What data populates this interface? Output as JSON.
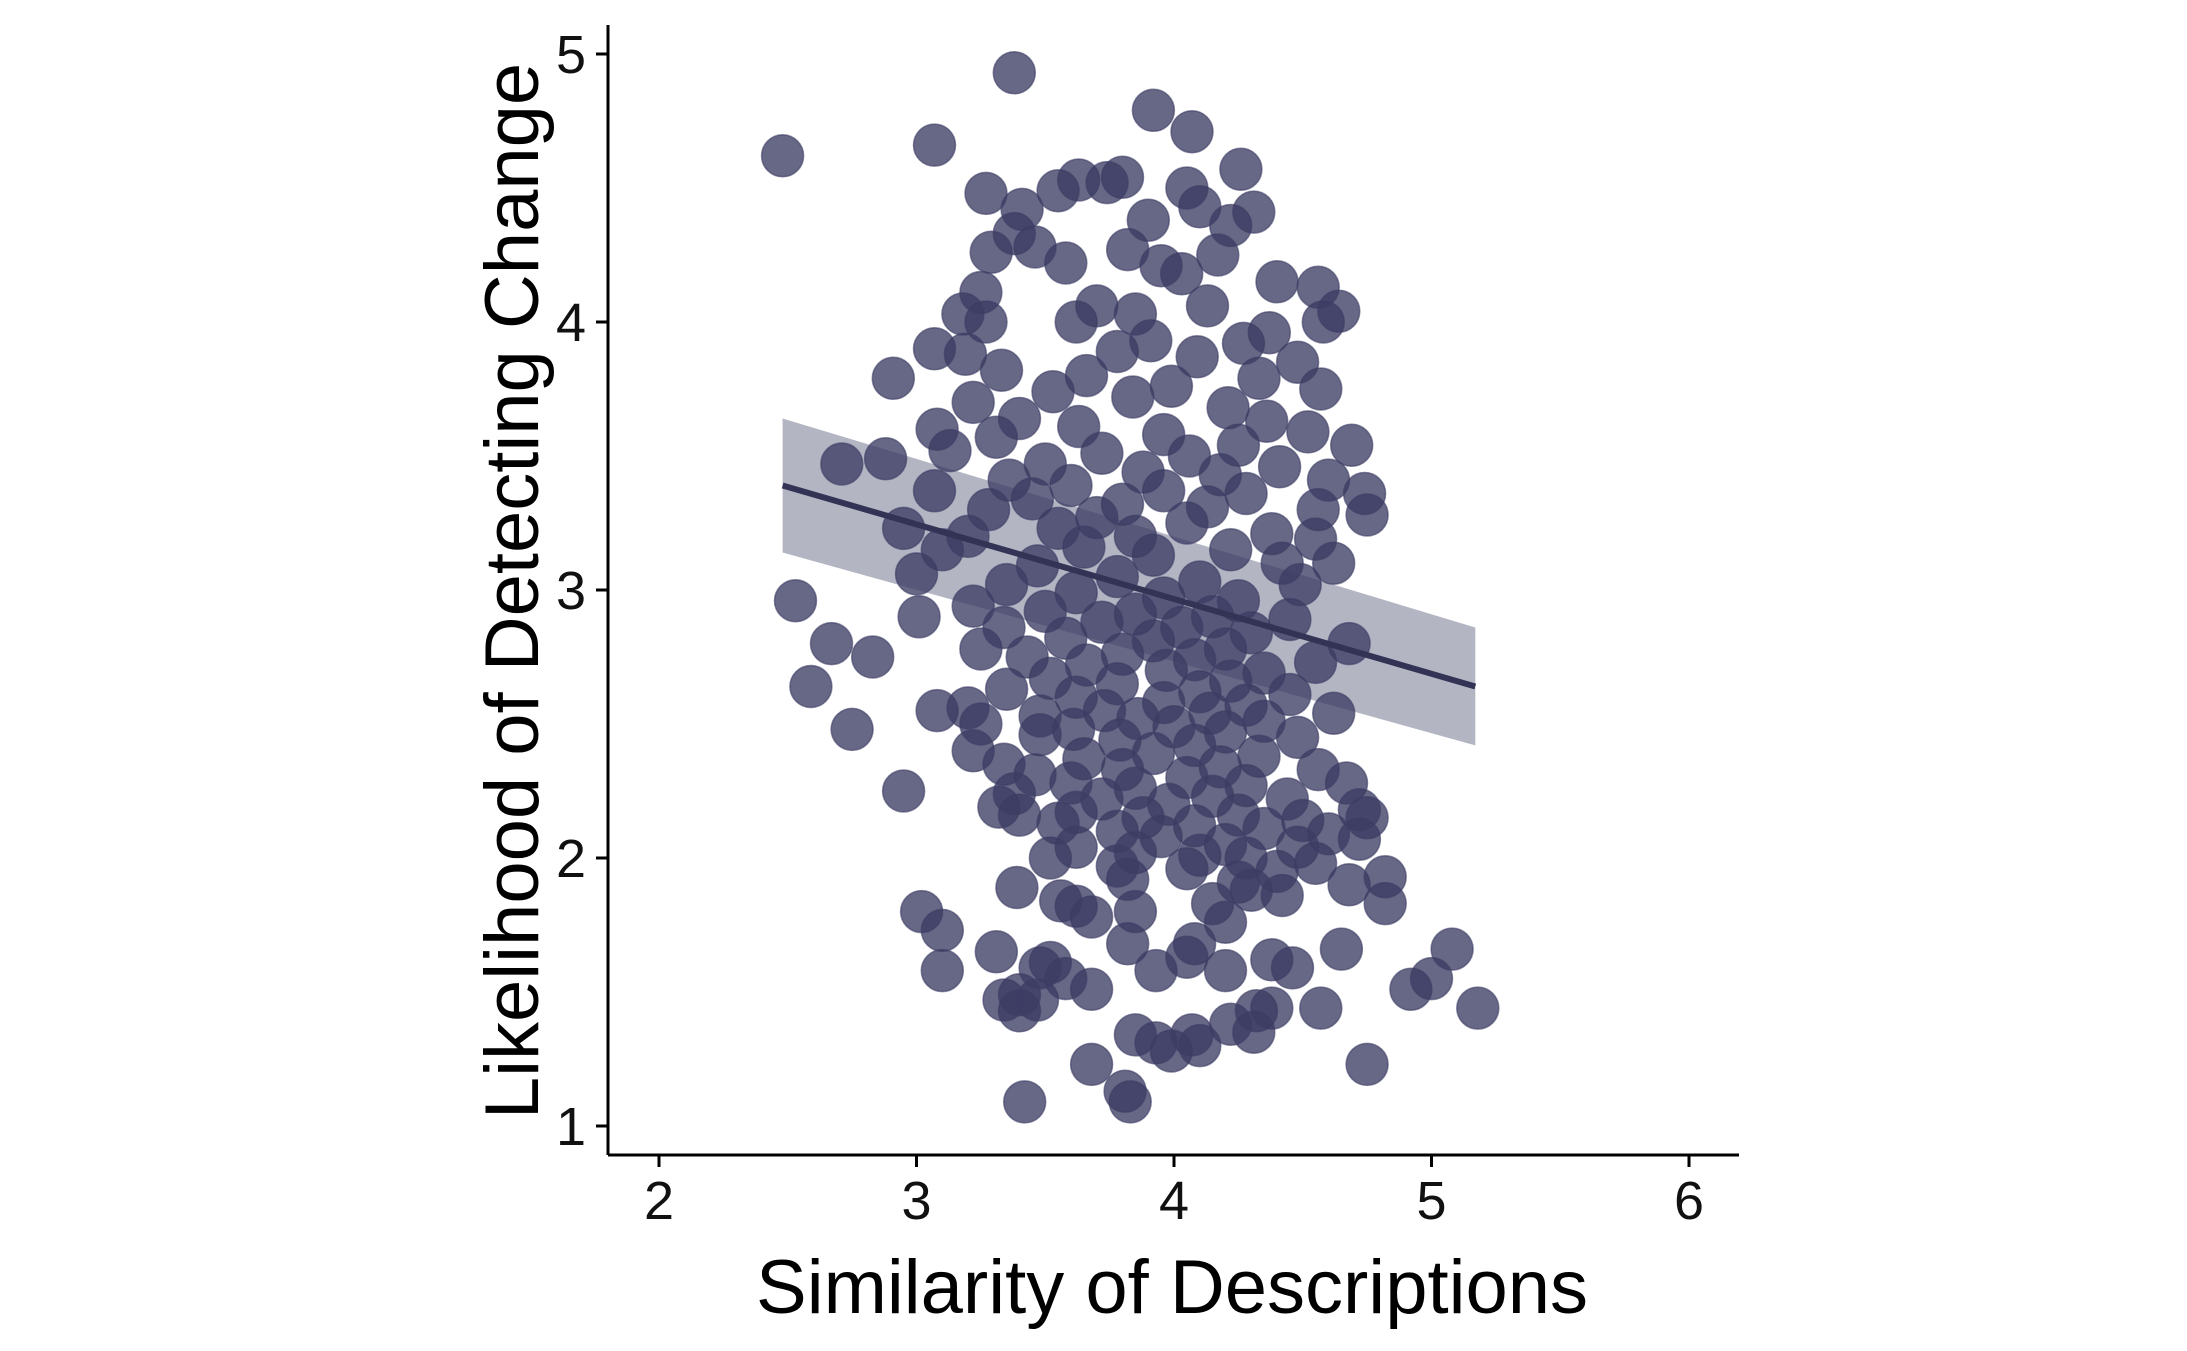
{
  "chart_data": {
    "type": "scatter",
    "title": "",
    "xlabel": "Similarity of Descriptions",
    "ylabel": "Likelihood of Detecting Change",
    "xlim": [
      1.8,
      6.2
    ],
    "ylim": [
      0.9,
      5.12
    ],
    "xticks": [
      2,
      3,
      4,
      5,
      6
    ],
    "yticks": [
      1,
      2,
      3,
      4,
      5
    ],
    "grid": false,
    "colors": {
      "points": "#3c3c64",
      "fit_line": "#333355",
      "ci_band": "#a6a8b8",
      "axis": "#000000"
    },
    "points": [
      [
        2.48,
        4.62
      ],
      [
        3.07,
        4.66
      ],
      [
        3.38,
        4.93
      ],
      [
        3.92,
        4.79
      ],
      [
        4.07,
        4.71
      ],
      [
        4.26,
        4.57
      ],
      [
        3.27,
        4.48
      ],
      [
        3.74,
        4.52
      ],
      [
        3.63,
        4.53
      ],
      [
        3.8,
        4.54
      ],
      [
        3.55,
        4.49
      ],
      [
        4.05,
        4.5
      ],
      [
        4.31,
        4.41
      ],
      [
        3.41,
        4.42
      ],
      [
        4.1,
        4.43
      ],
      [
        3.9,
        4.38
      ],
      [
        3.38,
        4.33
      ],
      [
        4.22,
        4.36
      ],
      [
        3.46,
        4.28
      ],
      [
        3.58,
        4.22
      ],
      [
        3.29,
        4.26
      ],
      [
        3.82,
        4.27
      ],
      [
        3.95,
        4.21
      ],
      [
        4.17,
        4.25
      ],
      [
        4.4,
        4.15
      ],
      [
        4.03,
        4.18
      ],
      [
        3.25,
        4.11
      ],
      [
        4.56,
        4.13
      ],
      [
        4.64,
        4.04
      ],
      [
        3.18,
        4.03
      ],
      [
        3.7,
        4.06
      ],
      [
        3.85,
        4.03
      ],
      [
        4.13,
        4.06
      ],
      [
        3.62,
        4.0
      ],
      [
        4.58,
        4.0
      ],
      [
        3.27,
        4.0
      ],
      [
        4.37,
        3.96
      ],
      [
        3.91,
        3.93
      ],
      [
        4.27,
        3.92
      ],
      [
        3.07,
        3.9
      ],
      [
        3.19,
        3.88
      ],
      [
        3.78,
        3.89
      ],
      [
        4.09,
        3.87
      ],
      [
        4.48,
        3.85
      ],
      [
        3.33,
        3.82
      ],
      [
        3.66,
        3.8
      ],
      [
        4.33,
        3.79
      ],
      [
        2.91,
        3.79
      ],
      [
        3.99,
        3.76
      ],
      [
        4.57,
        3.75
      ],
      [
        3.53,
        3.74
      ],
      [
        3.22,
        3.7
      ],
      [
        3.84,
        3.72
      ],
      [
        4.21,
        3.68
      ],
      [
        3.4,
        3.64
      ],
      [
        4.36,
        3.63
      ],
      [
        3.08,
        3.6
      ],
      [
        3.63,
        3.61
      ],
      [
        4.52,
        3.59
      ],
      [
        3.96,
        3.58
      ],
      [
        3.31,
        3.57
      ],
      [
        4.25,
        3.54
      ],
      [
        4.69,
        3.54
      ],
      [
        3.13,
        3.52
      ],
      [
        3.72,
        3.51
      ],
      [
        4.06,
        3.5
      ],
      [
        2.88,
        3.49
      ],
      [
        3.5,
        3.47
      ],
      [
        2.71,
        3.47
      ],
      [
        4.41,
        3.46
      ],
      [
        3.88,
        3.44
      ],
      [
        4.18,
        3.43
      ],
      [
        3.36,
        3.41
      ],
      [
        4.6,
        3.41
      ],
      [
        3.6,
        3.39
      ],
      [
        3.96,
        3.37
      ],
      [
        3.07,
        3.37
      ],
      [
        4.28,
        3.36
      ],
      [
        4.74,
        3.36
      ],
      [
        3.45,
        3.34
      ],
      [
        3.8,
        3.32
      ],
      [
        4.13,
        3.31
      ],
      [
        4.56,
        3.3
      ],
      [
        3.28,
        3.3
      ],
      [
        4.75,
        3.28
      ],
      [
        3.7,
        3.27
      ],
      [
        4.05,
        3.25
      ],
      [
        2.95,
        3.23
      ],
      [
        3.55,
        3.23
      ],
      [
        4.38,
        3.21
      ],
      [
        3.85,
        3.2
      ],
      [
        3.2,
        3.2
      ],
      [
        4.55,
        3.19
      ],
      [
        3.65,
        3.16
      ],
      [
        3.1,
        3.15
      ],
      [
        4.22,
        3.15
      ],
      [
        3.92,
        3.13
      ],
      [
        4.62,
        3.1
      ],
      [
        3.47,
        3.09
      ],
      [
        4.42,
        3.1
      ],
      [
        3.0,
        3.06
      ],
      [
        3.78,
        3.05
      ],
      [
        4.1,
        3.03
      ],
      [
        3.35,
        3.02
      ],
      [
        4.49,
        3.02
      ],
      [
        3.62,
        2.99
      ],
      [
        3.96,
        2.97
      ],
      [
        4.25,
        2.96
      ],
      [
        2.53,
        2.96
      ],
      [
        3.22,
        2.94
      ],
      [
        3.5,
        2.92
      ],
      [
        3.85,
        2.91
      ],
      [
        4.15,
        2.9
      ],
      [
        3.01,
        2.9
      ],
      [
        4.45,
        2.89
      ],
      [
        3.72,
        2.88
      ],
      [
        4.03,
        2.86
      ],
      [
        3.34,
        2.86
      ],
      [
        4.3,
        2.84
      ],
      [
        3.58,
        2.82
      ],
      [
        3.92,
        2.81
      ],
      [
        2.67,
        2.8
      ],
      [
        4.68,
        2.8
      ],
      [
        3.25,
        2.78
      ],
      [
        4.2,
        2.78
      ],
      [
        3.8,
        2.76
      ],
      [
        2.83,
        2.75
      ],
      [
        3.43,
        2.75
      ],
      [
        4.08,
        2.74
      ],
      [
        4.55,
        2.73
      ],
      [
        3.66,
        2.72
      ],
      [
        3.97,
        2.7
      ],
      [
        4.35,
        2.69
      ],
      [
        3.52,
        2.67
      ],
      [
        4.22,
        2.66
      ],
      [
        3.78,
        2.65
      ],
      [
        2.59,
        2.64
      ],
      [
        3.35,
        2.63
      ],
      [
        4.1,
        2.62
      ],
      [
        4.45,
        2.61
      ],
      [
        3.62,
        2.6
      ],
      [
        3.96,
        2.58
      ],
      [
        4.28,
        2.57
      ],
      [
        3.2,
        2.56
      ],
      [
        3.08,
        2.55
      ],
      [
        3.73,
        2.55
      ],
      [
        4.14,
        2.54
      ],
      [
        4.62,
        2.54
      ],
      [
        3.48,
        2.53
      ],
      [
        3.86,
        2.52
      ],
      [
        4.35,
        2.51
      ],
      [
        3.25,
        2.5
      ],
      [
        4.0,
        2.49
      ],
      [
        2.75,
        2.48
      ],
      [
        3.61,
        2.48
      ],
      [
        4.2,
        2.47
      ],
      [
        3.48,
        2.46
      ],
      [
        4.48,
        2.45
      ],
      [
        3.79,
        2.44
      ],
      [
        4.08,
        2.42
      ],
      [
        3.22,
        2.4
      ],
      [
        3.92,
        2.39
      ],
      [
        4.33,
        2.38
      ],
      [
        3.65,
        2.37
      ],
      [
        3.34,
        2.35
      ],
      [
        4.18,
        2.34
      ],
      [
        3.8,
        2.33
      ],
      [
        4.56,
        2.33
      ],
      [
        3.46,
        2.31
      ],
      [
        4.05,
        2.3
      ],
      [
        3.6,
        2.28
      ],
      [
        4.28,
        2.27
      ],
      [
        4.67,
        2.28
      ],
      [
        3.85,
        2.26
      ],
      [
        2.95,
        2.25
      ],
      [
        3.38,
        2.24
      ],
      [
        4.15,
        2.23
      ],
      [
        3.72,
        2.22
      ],
      [
        4.44,
        2.22
      ],
      [
        3.98,
        2.2
      ],
      [
        3.32,
        2.19
      ],
      [
        4.72,
        2.18
      ],
      [
        3.62,
        2.17
      ],
      [
        4.25,
        2.16
      ],
      [
        3.4,
        2.16
      ],
      [
        3.88,
        2.15
      ],
      [
        4.5,
        2.14
      ],
      [
        4.75,
        2.15
      ],
      [
        3.55,
        2.13
      ],
      [
        4.08,
        2.12
      ],
      [
        4.35,
        2.11
      ],
      [
        3.78,
        2.1
      ],
      [
        4.6,
        2.09
      ],
      [
        3.95,
        2.08
      ],
      [
        4.72,
        2.07
      ],
      [
        4.2,
        2.05
      ],
      [
        3.62,
        2.04
      ],
      [
        4.48,
        2.04
      ],
      [
        3.85,
        2.02
      ],
      [
        4.1,
        2.01
      ],
      [
        3.52,
        2.0
      ],
      [
        4.28,
        2.0
      ],
      [
        4.55,
        1.98
      ],
      [
        3.78,
        1.97
      ],
      [
        4.05,
        1.96
      ],
      [
        4.4,
        1.95
      ],
      [
        4.82,
        1.93
      ],
      [
        3.82,
        1.92
      ],
      [
        4.25,
        1.91
      ],
      [
        4.68,
        1.9
      ],
      [
        3.39,
        1.89
      ],
      [
        4.3,
        1.88
      ],
      [
        4.42,
        1.86
      ],
      [
        4.82,
        1.83
      ],
      [
        3.56,
        1.84
      ],
      [
        4.15,
        1.83
      ],
      [
        3.62,
        1.82
      ],
      [
        3.85,
        1.8
      ],
      [
        3.02,
        1.8
      ],
      [
        3.68,
        1.78
      ],
      [
        4.2,
        1.76
      ],
      [
        3.1,
        1.73
      ],
      [
        3.82,
        1.68
      ],
      [
        4.08,
        1.68
      ],
      [
        4.65,
        1.66
      ],
      [
        5.08,
        1.66
      ],
      [
        3.31,
        1.65
      ],
      [
        4.05,
        1.63
      ],
      [
        4.38,
        1.62
      ],
      [
        3.52,
        1.61
      ],
      [
        3.48,
        1.59
      ],
      [
        4.46,
        1.59
      ],
      [
        3.93,
        1.58
      ],
      [
        4.2,
        1.58
      ],
      [
        3.1,
        1.58
      ],
      [
        5.0,
        1.55
      ],
      [
        3.58,
        1.55
      ],
      [
        3.68,
        1.51
      ],
      [
        4.92,
        1.51
      ],
      [
        3.4,
        1.49
      ],
      [
        3.47,
        1.47
      ],
      [
        3.34,
        1.47
      ],
      [
        4.38,
        1.44
      ],
      [
        4.57,
        1.44
      ],
      [
        5.18,
        1.44
      ],
      [
        3.4,
        1.43
      ],
      [
        4.32,
        1.43
      ],
      [
        4.22,
        1.38
      ],
      [
        3.85,
        1.34
      ],
      [
        4.07,
        1.34
      ],
      [
        4.31,
        1.35
      ],
      [
        3.93,
        1.31
      ],
      [
        4.1,
        1.3
      ],
      [
        3.99,
        1.28
      ],
      [
        3.68,
        1.23
      ],
      [
        4.75,
        1.23
      ],
      [
        3.81,
        1.13
      ],
      [
        3.42,
        1.09
      ],
      [
        3.83,
        1.09
      ]
    ],
    "regression": {
      "x": [
        2.48,
        5.17
      ],
      "y": [
        3.39,
        2.64
      ],
      "ci_lower": [
        3.14,
        2.42
      ],
      "ci_upper": [
        3.64,
        2.86
      ]
    }
  }
}
